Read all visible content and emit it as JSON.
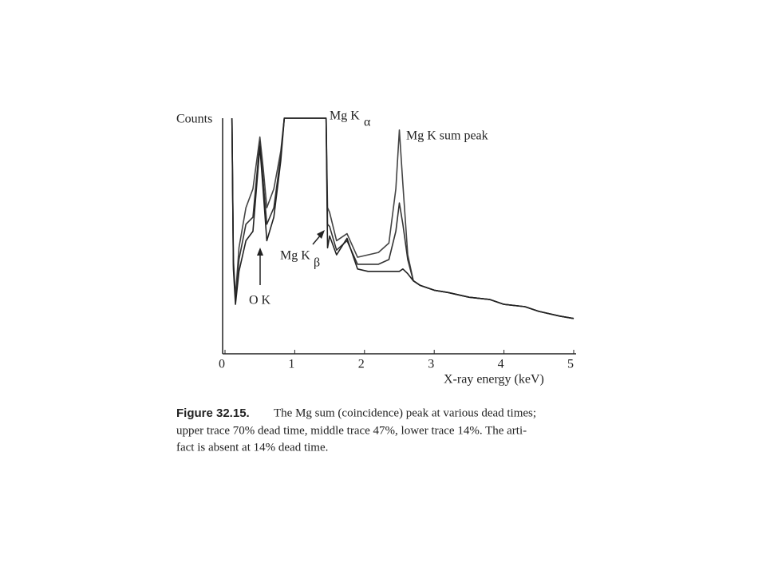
{
  "chart_data": {
    "type": "line",
    "y_label": "Counts",
    "x_label": "X-ray energy (keV)",
    "xlim": [
      0,
      5
    ],
    "xticks": [
      0,
      1,
      2,
      3,
      4,
      5
    ],
    "ylim": [
      0,
      100
    ],
    "x": [
      0.1,
      0.12,
      0.15,
      0.2,
      0.3,
      0.4,
      0.5,
      0.55,
      0.6,
      0.7,
      0.8,
      0.85,
      1.0,
      1.2,
      1.45,
      1.47,
      1.5,
      1.6,
      1.75,
      1.9,
      2.05,
      2.2,
      2.35,
      2.45,
      2.5,
      2.55,
      2.62,
      2.7,
      2.8,
      3.0,
      3.2,
      3.5,
      3.8,
      4.0,
      4.3,
      4.5,
      4.8,
      5.0
    ],
    "series": [
      {
        "color": "#444",
        "values": [
          100,
          40,
          24,
          45,
          62,
          70,
          92,
          78,
          62,
          70,
          86,
          100,
          100,
          100,
          100,
          62,
          60,
          48,
          51,
          41,
          42,
          43,
          47,
          70,
          95,
          72,
          42,
          31,
          29,
          27,
          26,
          24,
          23,
          21,
          20,
          18,
          16,
          15
        ]
      },
      {
        "color": "#333",
        "values": [
          100,
          38,
          23,
          40,
          55,
          58,
          90,
          72,
          55,
          62,
          84,
          100,
          100,
          100,
          100,
          55,
          54,
          44,
          48,
          38,
          38,
          38,
          40,
          52,
          64,
          55,
          40,
          31,
          29,
          27,
          26,
          24,
          23,
          21,
          20,
          18,
          16,
          15
        ]
      },
      {
        "color": "#222",
        "values": [
          100,
          36,
          21,
          35,
          48,
          52,
          88,
          68,
          48,
          58,
          82,
          100,
          100,
          100,
          100,
          45,
          50,
          42,
          49,
          36,
          35,
          35,
          35,
          35,
          35,
          36,
          34,
          31,
          29,
          27,
          26,
          24,
          23,
          21,
          20,
          18,
          16,
          15
        ]
      }
    ],
    "annotations": {
      "mg_ka": "Mg K",
      "mg_ka_sub": "α",
      "sum_peak": "Mg K sum peak",
      "mg_kb": "Mg K",
      "mg_kb_sub": "β",
      "ok": "O K"
    },
    "caption_label": "Figure 32.15.",
    "caption_lines": [
      "The Mg sum (coincidence) peak at various dead times;",
      "upper trace 70% dead time, middle trace 47%, lower trace 14%. The arti-",
      "fact is absent at 14% dead time."
    ]
  }
}
